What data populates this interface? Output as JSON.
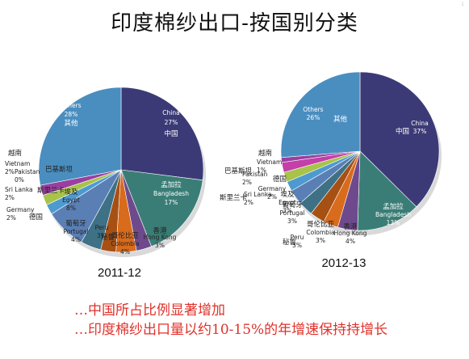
{
  "title": "印度棉纱出口-按国别分类",
  "page_num": "1",
  "palette": {
    "China": "#3c3a76",
    "Bangladesh": "#3a7d76",
    "Hong Kong": "#6e4a8c",
    "Colombia": "#d86b1c",
    "Peru": "#a65014",
    "Portugal": "#3e7186",
    "Egypt": "#5a7fb5",
    "Germany": "#4d9ad0",
    "Sri Lanka": "#a7c34a",
    "Pakistan": "#c240a7",
    "Vietnam": "#9a3fa0",
    "Others": "#4a8ec0"
  },
  "chart_data": [
    {
      "type": "pie",
      "title": "2011-12",
      "slices": [
        {
          "label": "China",
          "cn": "中国",
          "value": 27,
          "pct": "27%"
        },
        {
          "label": "Bangladesh",
          "cn": "孟加拉",
          "value": 17,
          "pct": "17%"
        },
        {
          "label": "Hong Kong",
          "cn": "香港",
          "value": 3,
          "pct": "3%"
        },
        {
          "label": "Colombia",
          "cn": "哥伦比亚",
          "value": 4,
          "pct": "4%"
        },
        {
          "label": "Peru",
          "cn": "秘鲁",
          "value": 3,
          "pct": "3%"
        },
        {
          "label": "Portugal",
          "cn": "葡萄牙",
          "value": 4,
          "pct": "4%"
        },
        {
          "label": "Egypt",
          "cn": "埃及",
          "value": 8,
          "pct": "8%"
        },
        {
          "label": "Germany",
          "cn": "德国",
          "value": 2,
          "pct": "2%"
        },
        {
          "label": "Sri Lanka",
          "cn": "斯里兰卡",
          "value": 2,
          "pct": "2%"
        },
        {
          "label": "Pakistan",
          "cn": "巴基斯坦",
          "value": 0,
          "pct": "0%"
        },
        {
          "label": "Vietnam",
          "cn": "越南",
          "value": 2,
          "pct": "2%"
        },
        {
          "label": "Others",
          "cn": "其他",
          "value": 28,
          "pct": "28%"
        }
      ]
    },
    {
      "type": "pie",
      "title": "2012-13",
      "slices": [
        {
          "label": "China",
          "cn": "中国",
          "value": 37,
          "pct": "37%"
        },
        {
          "label": "Bangladesh",
          "cn": "孟加拉",
          "value": 13,
          "pct": "13%"
        },
        {
          "label": "Hong Kong",
          "cn": "香港",
          "value": 4,
          "pct": "4%"
        },
        {
          "label": "Colombia",
          "cn": "哥伦比亚",
          "value": 3,
          "pct": "3%"
        },
        {
          "label": "Peru",
          "cn": "秘鲁",
          "value": 3,
          "pct": "3%"
        },
        {
          "label": "Portugal",
          "cn": "葡萄牙",
          "value": 3,
          "pct": "3%"
        },
        {
          "label": "Egypt",
          "cn": "埃及",
          "value": 3,
          "pct": "3%"
        },
        {
          "label": "Germany",
          "cn": "德国",
          "value": 2,
          "pct": "2%"
        },
        {
          "label": "Sri Lanka",
          "cn": "斯里兰卡",
          "value": 2,
          "pct": "2%"
        },
        {
          "label": "Pakistan",
          "cn": "巴基斯坦",
          "value": 2,
          "pct": "2%"
        },
        {
          "label": "Vietnam",
          "cn": "越南",
          "value": 1,
          "pct": "1%"
        },
        {
          "label": "Others",
          "cn": "其他",
          "value": 26,
          "pct": "26%"
        }
      ]
    }
  ],
  "notes": [
    "…中国所占比例显著增加",
    "…印度棉纱出口量以约10-15%的年增速保持持增长"
  ]
}
